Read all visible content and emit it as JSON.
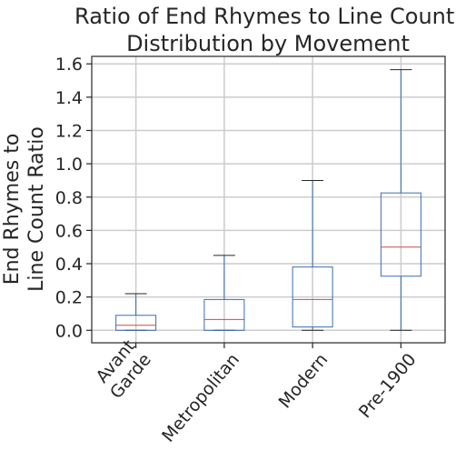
{
  "chart_data": {
    "type": "box",
    "title": [
      "Ratio of End Rhymes to Line Count,",
      "Distribution by Movement"
    ],
    "ylabel": [
      "End Rhymes to",
      "Line Count Ratio"
    ],
    "xlabel": "",
    "categories": [
      {
        "label": [
          "Avant",
          "Garde"
        ],
        "whisker_low": 0.0,
        "q1": 0.0,
        "median": 0.03,
        "q3": 0.09,
        "whisker_high": 0.22
      },
      {
        "label": [
          "Metropolitan"
        ],
        "whisker_low": 0.0,
        "q1": 0.0,
        "median": 0.065,
        "q3": 0.185,
        "whisker_high": 0.45
      },
      {
        "label": [
          "Modern"
        ],
        "whisker_low": 0.0,
        "q1": 0.02,
        "median": 0.185,
        "q3": 0.38,
        "whisker_high": 0.9
      },
      {
        "label": [
          "Pre-1900"
        ],
        "whisker_low": 0.0,
        "q1": 0.325,
        "median": 0.5,
        "q3": 0.825,
        "whisker_high": 1.565
      }
    ],
    "yticks": [
      "0.0",
      "0.2",
      "0.4",
      "0.6",
      "0.8",
      "1.0",
      "1.2",
      "1.4",
      "1.6"
    ],
    "ylim": [
      -0.075,
      1.645
    ],
    "grid": true,
    "colors": {
      "box": "#3a6eaf",
      "median": "#c0504d",
      "grid": "#cccccc",
      "axis": "#262626"
    }
  }
}
